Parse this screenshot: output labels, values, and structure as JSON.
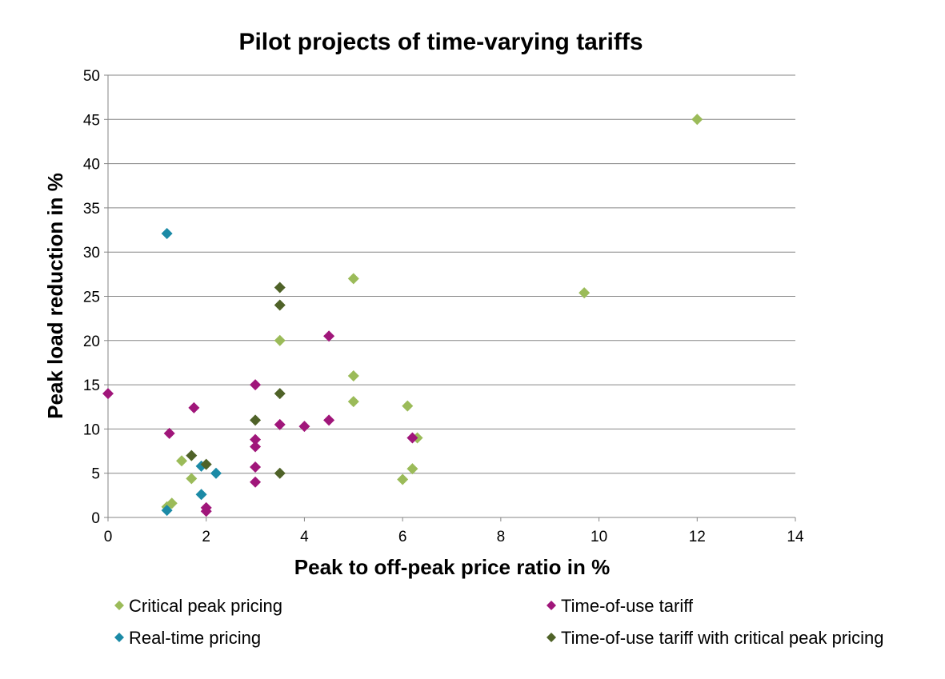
{
  "chart_data": {
    "type": "scatter",
    "title": "Pilot projects of time-varying tariffs",
    "xlabel": "Peak to off-peak price ratio in %",
    "ylabel": "Peak load reduction in %",
    "xlim": [
      0,
      14
    ],
    "ylim": [
      0,
      50
    ],
    "xticks": [
      "0",
      "2",
      "4",
      "6",
      "8",
      "10",
      "12",
      "14"
    ],
    "yticks": [
      "0",
      "5",
      "10",
      "15",
      "20",
      "25",
      "30",
      "35",
      "40",
      "45",
      "50"
    ],
    "grid": "horizontal",
    "legend_position": "bottom",
    "series": [
      {
        "name": "Critical peak pricing",
        "color": "#9BBB59",
        "points": [
          [
            12,
            45
          ],
          [
            9.7,
            25.4
          ],
          [
            5,
            27
          ],
          [
            5,
            16
          ],
          [
            5,
            13.1
          ],
          [
            3.5,
            20
          ],
          [
            6.1,
            12.6
          ],
          [
            6.3,
            9
          ],
          [
            6.2,
            5.5
          ],
          [
            6,
            4.3
          ],
          [
            1.5,
            6.4
          ],
          [
            1.7,
            4.4
          ],
          [
            1.3,
            1.6
          ],
          [
            1.2,
            1.2
          ]
        ]
      },
      {
        "name": "Time-of-use tariff",
        "color": "#A0167A",
        "points": [
          [
            0,
            14
          ],
          [
            1.25,
            9.5
          ],
          [
            1.75,
            12.4
          ],
          [
            2,
            1.1
          ],
          [
            2,
            0.7
          ],
          [
            3,
            15
          ],
          [
            3,
            8.8
          ],
          [
            3,
            8
          ],
          [
            3,
            5.7
          ],
          [
            3,
            4
          ],
          [
            3.5,
            10.5
          ],
          [
            4,
            10.3
          ],
          [
            4.5,
            20.5
          ],
          [
            4.5,
            11
          ],
          [
            6.2,
            9
          ]
        ]
      },
      {
        "name": "Real-time pricing",
        "color": "#1B8AA6",
        "points": [
          [
            1.2,
            32.1
          ],
          [
            1.2,
            0.8
          ],
          [
            1.9,
            2.6
          ],
          [
            1.9,
            5.8
          ],
          [
            2.2,
            5
          ]
        ]
      },
      {
        "name": "Time-of-use tariff with critical peak pricing",
        "color": "#4F6228",
        "points": [
          [
            1.7,
            7
          ],
          [
            2,
            6
          ],
          [
            3,
            11
          ],
          [
            3.5,
            26
          ],
          [
            3.5,
            24
          ],
          [
            3.5,
            14
          ],
          [
            3.5,
            5
          ]
        ]
      }
    ]
  }
}
